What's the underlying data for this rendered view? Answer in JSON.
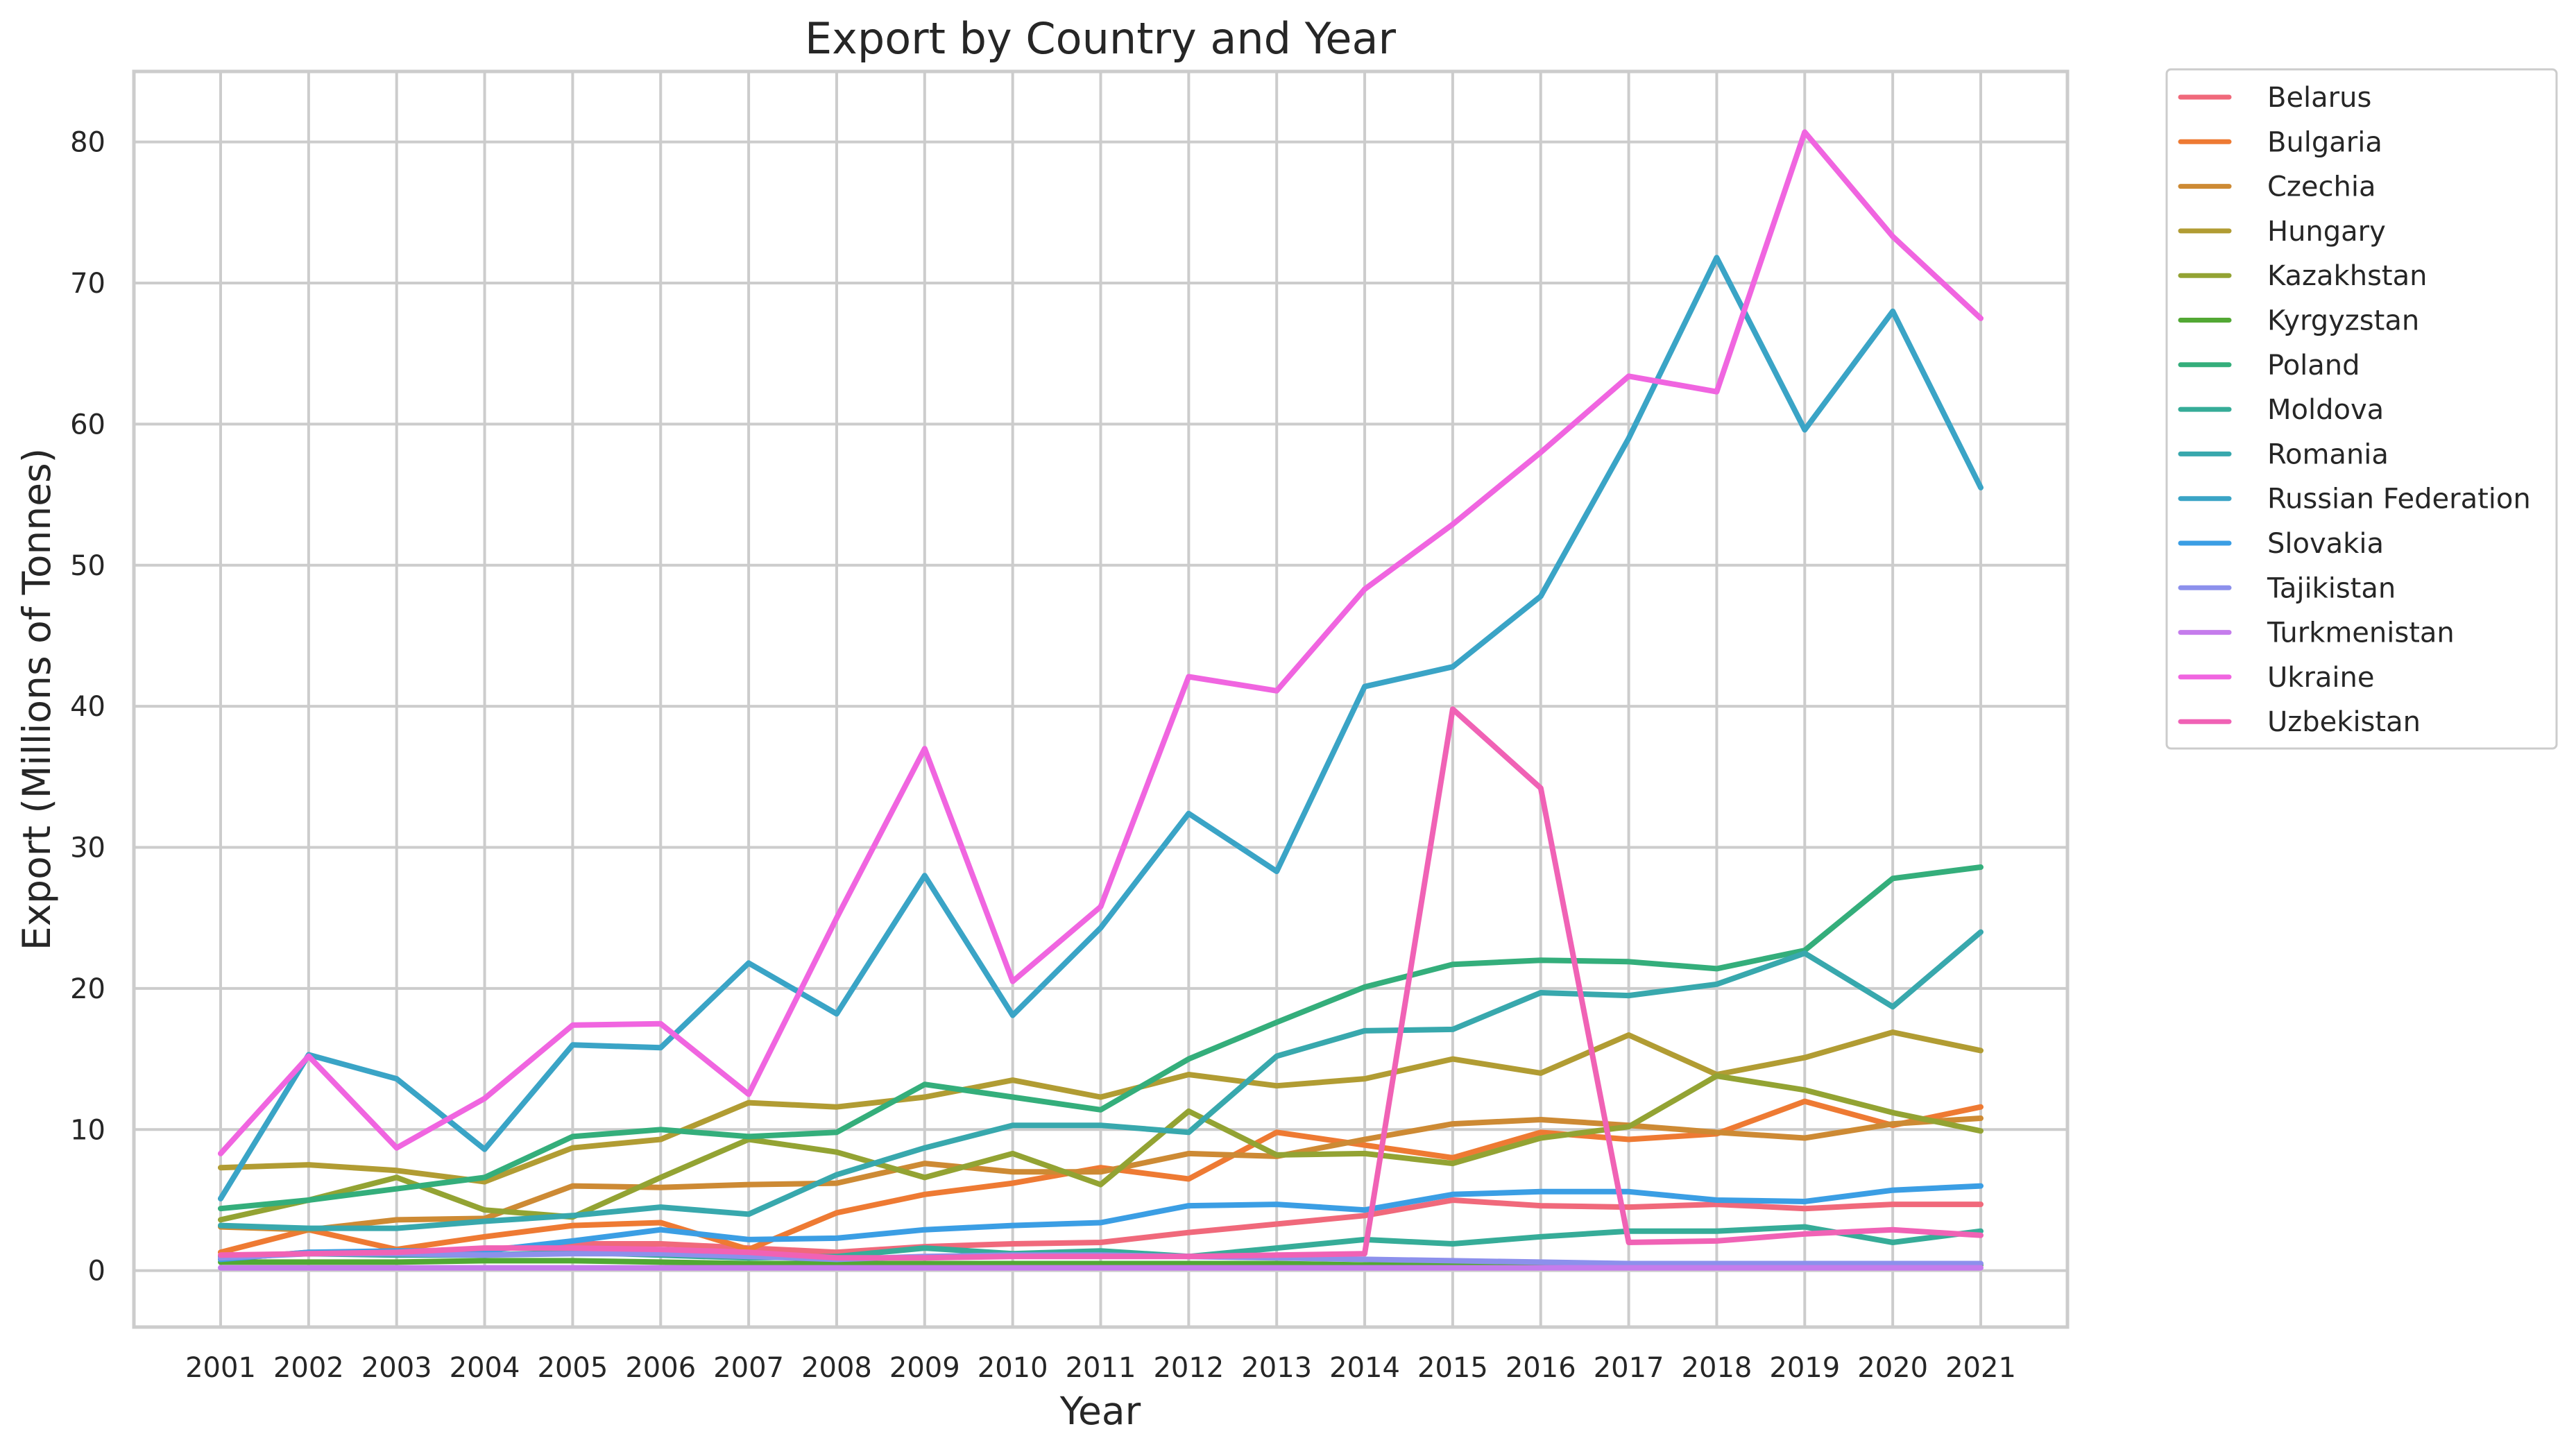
{
  "chart_data": {
    "type": "line",
    "title": "Export by Country and Year",
    "xlabel": "Year",
    "ylabel": "Export (Millions of Tonnes)",
    "x": [
      2001,
      2002,
      2003,
      2004,
      2005,
      2006,
      2007,
      2008,
      2009,
      2010,
      2011,
      2012,
      2013,
      2014,
      2015,
      2016,
      2017,
      2018,
      2019,
      2020,
      2021
    ],
    "yticks": [
      0,
      10,
      20,
      30,
      40,
      50,
      60,
      70,
      80
    ],
    "ylim": [
      -4,
      85
    ],
    "grid": true,
    "legend_position": "outside-right",
    "series": [
      {
        "name": "Belarus",
        "color": "#f0697b",
        "values": [
          0.8,
          1.3,
          1.2,
          1.5,
          1.9,
          1.9,
          1.6,
          1.3,
          1.7,
          1.9,
          2.0,
          2.7,
          3.3,
          3.9,
          5.0,
          4.6,
          4.5,
          4.7,
          4.4,
          4.7,
          4.7
        ]
      },
      {
        "name": "Bulgaria",
        "color": "#ee7a33",
        "values": [
          1.3,
          2.9,
          1.5,
          2.4,
          3.2,
          3.4,
          1.5,
          4.1,
          5.4,
          6.2,
          7.3,
          6.5,
          9.8,
          8.9,
          8.0,
          9.8,
          9.3,
          9.7,
          12.0,
          10.3,
          11.6
        ]
      },
      {
        "name": "Czechia",
        "color": "#cd8a34",
        "values": [
          3.1,
          2.9,
          3.6,
          3.7,
          6.0,
          5.9,
          6.1,
          6.2,
          7.6,
          7.0,
          7.0,
          8.3,
          8.1,
          9.3,
          10.4,
          10.7,
          10.3,
          9.8,
          9.4,
          10.4,
          10.8
        ]
      },
      {
        "name": "Hungary",
        "color": "#b19c33",
        "values": [
          7.3,
          7.5,
          7.1,
          6.3,
          8.7,
          9.3,
          11.9,
          11.6,
          12.3,
          13.5,
          12.3,
          13.9,
          13.1,
          13.6,
          15.0,
          14.0,
          16.7,
          13.9,
          15.1,
          16.9,
          15.6
        ]
      },
      {
        "name": "Kazakhstan",
        "color": "#93a333",
        "values": [
          3.6,
          5.0,
          6.6,
          4.3,
          3.8,
          6.6,
          9.3,
          8.4,
          6.6,
          8.3,
          6.1,
          11.3,
          8.2,
          8.3,
          7.6,
          9.4,
          10.2,
          13.8,
          12.8,
          11.2,
          9.9
        ]
      },
      {
        "name": "Kyrgyzstan",
        "color": "#52a834",
        "values": [
          0.6,
          0.6,
          0.6,
          0.7,
          0.7,
          0.6,
          0.5,
          0.5,
          0.5,
          0.5,
          0.5,
          0.5,
          0.5,
          0.4,
          0.4,
          0.4,
          0.4,
          0.4,
          0.4,
          0.4,
          0.4
        ]
      },
      {
        "name": "Poland",
        "color": "#34ae7b",
        "values": [
          4.4,
          5.0,
          5.8,
          6.6,
          9.5,
          10.0,
          9.5,
          9.8,
          13.2,
          12.3,
          11.4,
          15.0,
          17.6,
          20.1,
          21.7,
          22.0,
          21.9,
          21.4,
          22.7,
          27.8,
          28.6
        ]
      },
      {
        "name": "Moldova",
        "color": "#36ac98",
        "values": [
          1.0,
          1.2,
          1.1,
          1.1,
          1.3,
          1.1,
          0.9,
          1.0,
          1.6,
          1.2,
          1.4,
          1.0,
          1.6,
          2.2,
          1.9,
          2.4,
          2.8,
          2.8,
          3.1,
          2.0,
          2.8
        ]
      },
      {
        "name": "Romania",
        "color": "#38a8ad",
        "values": [
          3.2,
          3.0,
          3.0,
          3.5,
          3.9,
          4.5,
          4.0,
          6.8,
          8.7,
          10.3,
          10.3,
          9.8,
          15.2,
          17.0,
          17.1,
          19.7,
          19.5,
          20.3,
          22.5,
          18.7,
          24.0
        ]
      },
      {
        "name": "Russian Federation",
        "color": "#3aa4c6",
        "values": [
          5.1,
          15.3,
          13.6,
          8.6,
          16.0,
          15.8,
          21.8,
          18.2,
          28.0,
          18.1,
          24.3,
          32.4,
          28.3,
          41.4,
          42.8,
          47.8,
          59.0,
          71.8,
          59.6,
          68.0,
          55.5
        ]
      },
      {
        "name": "Slovakia",
        "color": "#3b9ee4",
        "values": [
          0.8,
          1.3,
          1.4,
          1.4,
          2.1,
          2.9,
          2.2,
          2.3,
          2.9,
          3.2,
          3.4,
          4.6,
          4.7,
          4.3,
          5.4,
          5.6,
          5.6,
          5.0,
          4.9,
          5.7,
          6.0
        ]
      },
      {
        "name": "Tajikistan",
        "color": "#8c90ec",
        "values": [
          0.9,
          1.2,
          1.2,
          1.1,
          1.2,
          1.2,
          1.0,
          0.8,
          1.0,
          1.1,
          1.1,
          1.0,
          0.9,
          0.8,
          0.7,
          0.6,
          0.5,
          0.5,
          0.5,
          0.5,
          0.5
        ]
      },
      {
        "name": "Turkmenistan",
        "color": "#c57cec",
        "values": [
          0.2,
          0.2,
          0.2,
          0.2,
          0.2,
          0.2,
          0.2,
          0.2,
          0.2,
          0.2,
          0.2,
          0.2,
          0.2,
          0.2,
          0.2,
          0.2,
          0.2,
          0.2,
          0.2,
          0.2,
          0.2
        ]
      },
      {
        "name": "Ukraine",
        "color": "#f065e0",
        "values": [
          8.3,
          15.2,
          8.7,
          12.2,
          17.4,
          17.5,
          12.5,
          25.0,
          37.0,
          20.5,
          25.8,
          42.1,
          41.1,
          48.3,
          52.9,
          58.0,
          63.4,
          62.3,
          80.7,
          73.3,
          67.5
        ]
      },
      {
        "name": "Uzbekistan",
        "color": "#f062b5",
        "values": [
          1.1,
          1.2,
          1.3,
          1.6,
          1.6,
          1.5,
          1.3,
          0.9,
          0.9,
          1.0,
          1.0,
          1.0,
          1.1,
          1.2,
          39.8,
          34.2,
          2.0,
          2.1,
          2.6,
          2.9,
          2.5
        ]
      }
    ]
  }
}
